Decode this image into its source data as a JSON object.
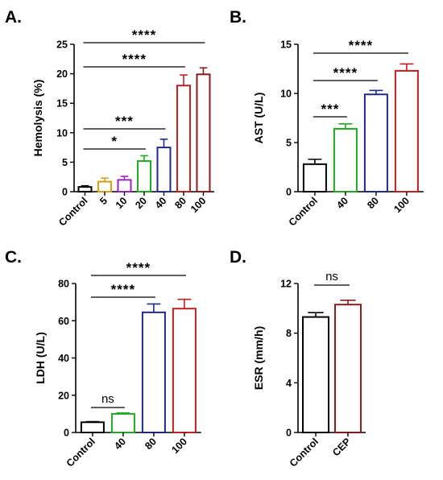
{
  "chart_data": [
    {
      "type": "bar",
      "panel_label": "A.",
      "ylabel": "Hemolysis (%)",
      "categories": [
        "Control",
        "5",
        "10",
        "20",
        "40",
        "80",
        "100"
      ],
      "values": [
        0.8,
        1.7,
        2.0,
        5.2,
        7.5,
        18.0,
        19.9
      ],
      "errors": [
        0.2,
        0.6,
        0.6,
        0.9,
        1.4,
        1.8,
        1.1
      ],
      "colors": [
        "#000000",
        "#d4a017",
        "#a020c0",
        "#22a822",
        "#1f2a8a",
        "#c02020",
        "#8b1a1a"
      ],
      "ylim": [
        0,
        25
      ],
      "yticks": [
        "0",
        "5",
        "10",
        "15",
        "20",
        "25"
      ],
      "comparisons": [
        {
          "from": "Control",
          "to": "100",
          "label": "****"
        },
        {
          "from": "Control",
          "to": "80",
          "label": "****"
        },
        {
          "from": "Control",
          "to": "40",
          "label": "***"
        },
        {
          "from": "Control",
          "to": "20",
          "label": "*"
        }
      ]
    },
    {
      "type": "bar",
      "panel_label": "B.",
      "ylabel": "AST (U/L)",
      "categories": [
        "Control",
        "40",
        "80",
        "100"
      ],
      "values": [
        2.8,
        6.4,
        9.9,
        12.3
      ],
      "errors": [
        0.5,
        0.5,
        0.4,
        0.7
      ],
      "colors": [
        "#000000",
        "#22a822",
        "#1f2a8a",
        "#c02020"
      ],
      "ylim": [
        0,
        15
      ],
      "yticks": [
        "0",
        "5",
        "10",
        "15"
      ],
      "comparisons": [
        {
          "from": "Control",
          "to": "100",
          "label": "****"
        },
        {
          "from": "Control",
          "to": "80",
          "label": "****"
        },
        {
          "from": "Control",
          "to": "40",
          "label": "***"
        }
      ]
    },
    {
      "type": "bar",
      "panel_label": "C.",
      "ylabel": "LDH (U/L)",
      "categories": [
        "Control",
        "40",
        "80",
        "100"
      ],
      "values": [
        5.5,
        10.0,
        64.5,
        66.5
      ],
      "errors": [
        0.3,
        0.5,
        4.5,
        5.0
      ],
      "colors": [
        "#000000",
        "#22a822",
        "#1f2a8a",
        "#c02020"
      ],
      "ylim": [
        0,
        80
      ],
      "yticks": [
        "0",
        "20",
        "40",
        "60",
        "80"
      ],
      "comparisons": [
        {
          "from": "Control",
          "to": "100",
          "label": "****"
        },
        {
          "from": "Control",
          "to": "80",
          "label": "****"
        },
        {
          "from": "Control",
          "to": "40",
          "label": "ns"
        }
      ]
    },
    {
      "type": "bar",
      "panel_label": "D.",
      "ylabel": "ESR (mm/h)",
      "categories": [
        "Control",
        "CEP"
      ],
      "values": [
        9.3,
        10.3
      ],
      "errors": [
        0.35,
        0.35
      ],
      "colors": [
        "#000000",
        "#8b1a1a"
      ],
      "ylim": [
        0,
        12
      ],
      "yticks": [
        "0",
        "4",
        "8",
        "12"
      ],
      "comparisons": [
        {
          "from": "Control",
          "to": "CEP",
          "label": "ns"
        }
      ]
    }
  ]
}
